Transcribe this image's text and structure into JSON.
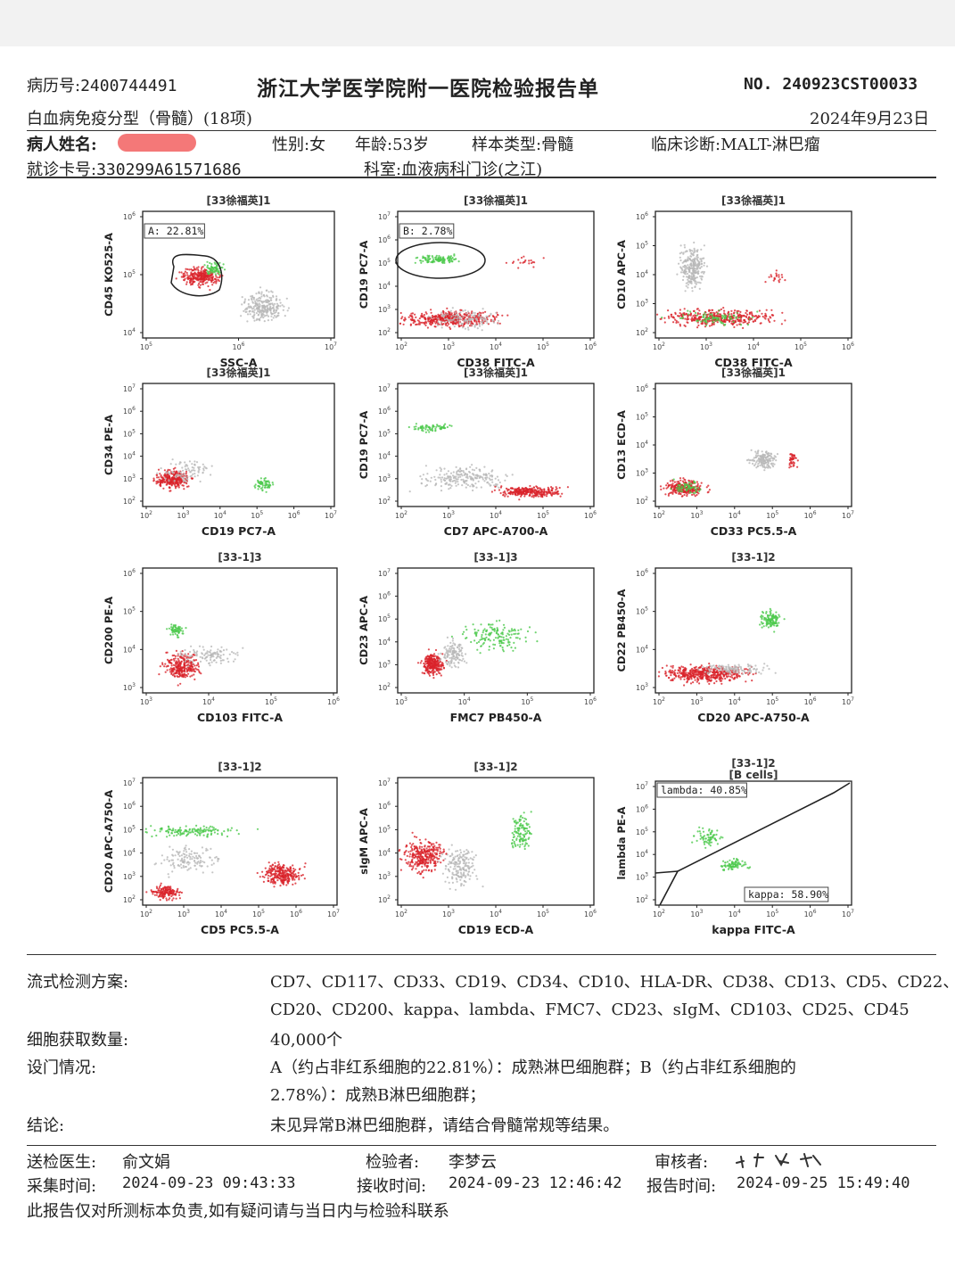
{
  "header": {
    "record_label": "病历号:",
    "record_no": "2400744491",
    "hospital_title": "浙江大学医学院附一医院检验报告单",
    "report_no": "NO. 240923CST00033",
    "test_name": "白血病免疫分型（骨髓）(18项)",
    "report_date": "2024年9月23日",
    "patient_name_label": "病人姓名:",
    "sex": "性别:女",
    "age": "年龄:53岁",
    "sample_type": "样本类型:骨髓",
    "diagnosis": "临床诊断:MALT-淋巴瘤",
    "card_label": "就诊卡号:",
    "card_no": "330299A61571686",
    "department": "科室:血液病科门诊(之江)"
  },
  "plots": [
    {
      "title": "[33徐福英]1",
      "xlabel": "SSC-A",
      "ylabel": "CD45 KO525-A",
      "gate": "A: 22.81%"
    },
    {
      "title": "[33徐福英]1",
      "xlabel": "CD38 FITC-A",
      "ylabel": "CD19 PC7-A",
      "gate": "B: 2.78%"
    },
    {
      "title": "[33徐福英]1",
      "xlabel": "CD38 FITC-A",
      "ylabel": "CD10 APC-A"
    },
    {
      "title": "[33徐福英]1",
      "xlabel": "CD19 PC7-A",
      "ylabel": "CD34 PE-A"
    },
    {
      "title": "[33徐福英]1",
      "xlabel": "CD7 APC-A700-A",
      "ylabel": "CD19 PC7-A"
    },
    {
      "title": "[33徐福英]1",
      "xlabel": "CD33 PC5.5-A",
      "ylabel": "CD13 ECD-A"
    },
    {
      "title": "[33-1]3",
      "xlabel": "CD103 FITC-A",
      "ylabel": "CD200 PE-A"
    },
    {
      "title": "[33-1]3",
      "xlabel": "FMC7 PB450-A",
      "ylabel": "CD23 APC-A"
    },
    {
      "title": "[33-1]2",
      "xlabel": "CD20 APC-A750-A",
      "ylabel": "CD22 PB450-A"
    },
    {
      "title": "[33-1]2",
      "xlabel": "CD5 PC5.5-A",
      "ylabel": "CD20 APC-A750-A"
    },
    {
      "title": "[33-1]2",
      "xlabel": "CD19 ECD-A",
      "ylabel": "sIgM APC-A"
    },
    {
      "title": "[33-1]2",
      "subtitle": "[B cells]",
      "xlabel": "kappa FITC-A",
      "ylabel": "lambda PE-A",
      "gate": "lambda: 40.85%",
      "gate2": "kappa: 58.90%"
    }
  ],
  "results": {
    "scheme_label": "流式检测方案:",
    "scheme_line1": "CD7、CD117、CD33、CD19、CD34、CD10、HLA-DR、CD38、CD13、CD5、CD22、",
    "scheme_line2": "CD20、CD200、kappa、lambda、FMC7、CD23、sIgM、CD103、CD25、CD45",
    "count_label": "细胞获取数量:",
    "count_value": "40,000个",
    "gate_label": "设门情况:",
    "gate_line1": "A（约占非红系细胞的22.81%）：成熟淋巴细胞群；B（约占非红系细胞的",
    "gate_line2": "2.78%）：成熟B淋巴细胞群；",
    "conclusion_label": "结论:",
    "conclusion_value": "未见异常B淋巴细胞群，请结合骨髓常规等结果。"
  },
  "footer": {
    "doctor_label": "送检医生:",
    "doctor": "俞文娟",
    "tester_label": "检验者:",
    "tester": "李梦云",
    "reviewer_label": "审核者:",
    "collect_label": "采集时间:",
    "collect_time": "2024-09-23  09:43:33",
    "receive_label": "接收时间:",
    "receive_time": "2024-09-23  12:46:42",
    "report_label": "报告时间:",
    "report_time": "2024-09-25  15:49:40",
    "disclaimer": "此报告仅对所测标本负责,如有疑问请与当日内与检验科联系"
  },
  "colors": {
    "gray_cells": "#b8b8b8",
    "red_cells": "#d9232a",
    "green_cells": "#4cc94c"
  }
}
